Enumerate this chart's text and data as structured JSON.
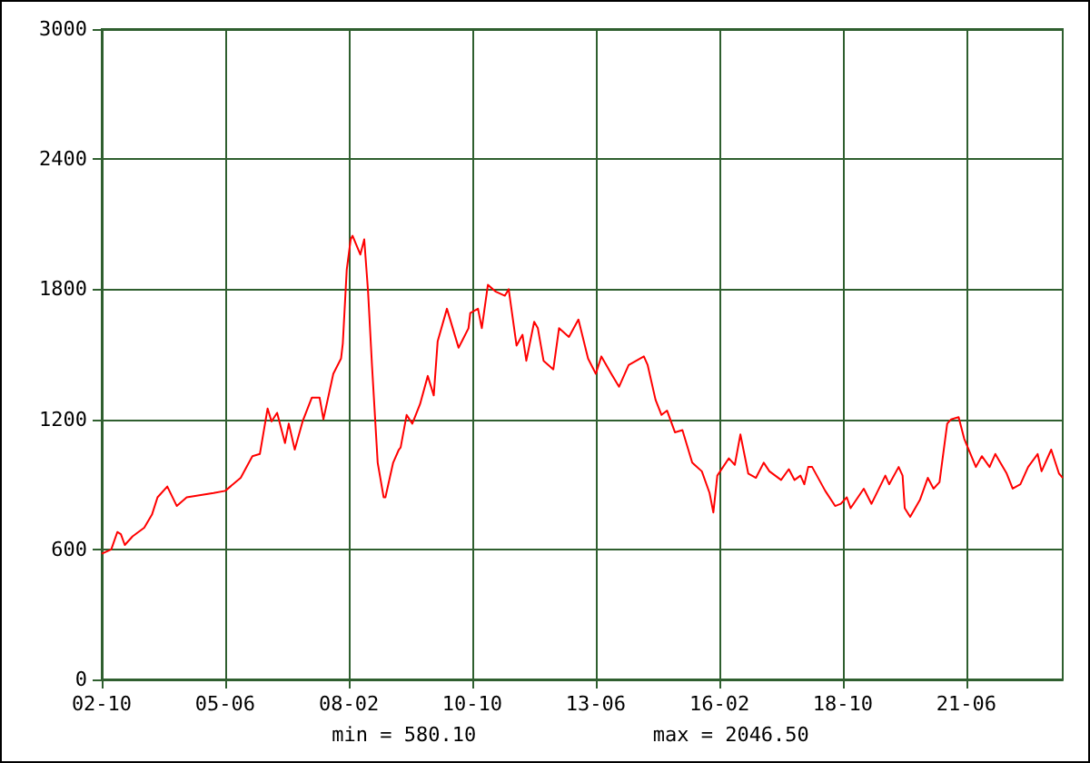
{
  "chart_data": {
    "type": "line",
    "annotations": [
      "min = 580.10",
      "max = 2046.50"
    ],
    "x": [
      "2002-10",
      "2002-12-15",
      "2003-02",
      "2003-03",
      "2003-04",
      "2003-06",
      "2003-09",
      "2003-11",
      "2003-12-15",
      "2004-03",
      "2004-05-15",
      "2004-08",
      "2005-03",
      "2005-06",
      "2005-10",
      "2006-01",
      "2006-03",
      "2006-05",
      "2006-06",
      "2006-07-15",
      "2006-09-15",
      "2006-10-15",
      "2006-12",
      "2007-02",
      "2007-04-15",
      "2007-06-15",
      "2007-07-15",
      "2007-10",
      "2007-12",
      "2007-12-15",
      "2008-01-15",
      "2008-02-15",
      "2008-03",
      "2008-05",
      "2008-06",
      "2008-07",
      "2008-08",
      "2008-09-15",
      "2008-11",
      "2008-11-15",
      "2009-01-15",
      "2009-03",
      "2009-03-15",
      "2009-05",
      "2009-06-15",
      "2009-08-15",
      "2009-10-15",
      "2009-12",
      "2010-01",
      "2010-03-15",
      "2010-06-15",
      "2010-09",
      "2010-09-15",
      "2010-11-15",
      "2010-12-15",
      "2011-02",
      "2011-04",
      "2011-06-15",
      "2011-07-15",
      "2011-09-15",
      "2011-11",
      "2011-12",
      "2012-02",
      "2012-03",
      "2012-04-15",
      "2012-07",
      "2012-08-15",
      "2012-11",
      "2013-01-15",
      "2013-04",
      "2013-06",
      "2013-07-15",
      "2013-10",
      "2013-12",
      "2014-02-15",
      "2014-06-15",
      "2014-07-15",
      "2014-09-15",
      "2014-11",
      "2014-12-15",
      "2015-02-15",
      "2015-04-15",
      "2015-07",
      "2015-09-15",
      "2015-11-15",
      "2015-12-15",
      "2016-01-15",
      "2016-04-15",
      "2016-06",
      "2016-07-15",
      "2016-09-15",
      "2016-11-15",
      "2017-01-15",
      "2017-03",
      "2017-06",
      "2017-08",
      "2017-09-15",
      "2017-11",
      "2017-12",
      "2018-01",
      "2018-02",
      "2018-05-15",
      "2018-08",
      "2018-09-15",
      "2018-11",
      "2018-12",
      "2019-03-15",
      "2019-05-15",
      "2019-09",
      "2019-10",
      "2019-12-15",
      "2020-01-15",
      "2020-02",
      "2020-03-15",
      "2020-06",
      "2020-08",
      "2020-09-15",
      "2020-11",
      "2021-01",
      "2021-02",
      "2021-04",
      "2021-05-15",
      "2021-08-15",
      "2021-10",
      "2021-12",
      "2022-01-15",
      "2022-04-15",
      "2022-06",
      "2022-08",
      "2022-10",
      "2022-12-15",
      "2023-01-15",
      "2023-04",
      "2023-06",
      "2023-07"
    ],
    "series": [
      {
        "color": "#ff0000",
        "values": [
          580,
          600,
          680,
          670,
          620,
          660,
          700,
          760,
          840,
          890,
          800,
          840,
          860,
          870,
          930,
          1030,
          1040,
          1250,
          1190,
          1230,
          1090,
          1180,
          1060,
          1190,
          1300,
          1300,
          1200,
          1410,
          1480,
          1550,
          1890,
          2030,
          2046.5,
          1960,
          2030,
          1790,
          1450,
          1000,
          840,
          840,
          1000,
          1060,
          1070,
          1220,
          1180,
          1270,
          1400,
          1310,
          1560,
          1710,
          1530,
          1620,
          1690,
          1710,
          1620,
          1820,
          1790,
          1770,
          1800,
          1540,
          1590,
          1470,
          1650,
          1620,
          1470,
          1430,
          1620,
          1580,
          1660,
          1480,
          1410,
          1490,
          1410,
          1350,
          1450,
          1490,
          1450,
          1290,
          1220,
          1240,
          1140,
          1150,
          1000,
          960,
          860,
          770,
          940,
          1020,
          990,
          1130,
          950,
          930,
          1000,
          960,
          920,
          970,
          920,
          940,
          900,
          980,
          980,
          870,
          800,
          810,
          840,
          790,
          880,
          810,
          940,
          900,
          980,
          940,
          790,
          750,
          830,
          930,
          880,
          910,
          1180,
          1200,
          1210,
          1110,
          980,
          1030,
          980,
          1040,
          950,
          880,
          900,
          980,
          1040,
          960,
          1060,
          950,
          930
        ]
      }
    ],
    "xlim": [
      "2002-10",
      "2023-07"
    ],
    "xticks": [
      {
        "value": "2002-10",
        "label": "02-10"
      },
      {
        "value": "2005-06",
        "label": "05-06"
      },
      {
        "value": "2008-02",
        "label": "08-02"
      },
      {
        "value": "2010-10",
        "label": "10-10"
      },
      {
        "value": "2013-06",
        "label": "13-06"
      },
      {
        "value": "2016-02",
        "label": "16-02"
      },
      {
        "value": "2018-10",
        "label": "18-10"
      },
      {
        "value": "2021-06",
        "label": "21-06"
      }
    ],
    "ylim": [
      0,
      3000
    ],
    "yticks": [
      0,
      600,
      1200,
      1800,
      2400,
      3000
    ],
    "grid": true
  }
}
